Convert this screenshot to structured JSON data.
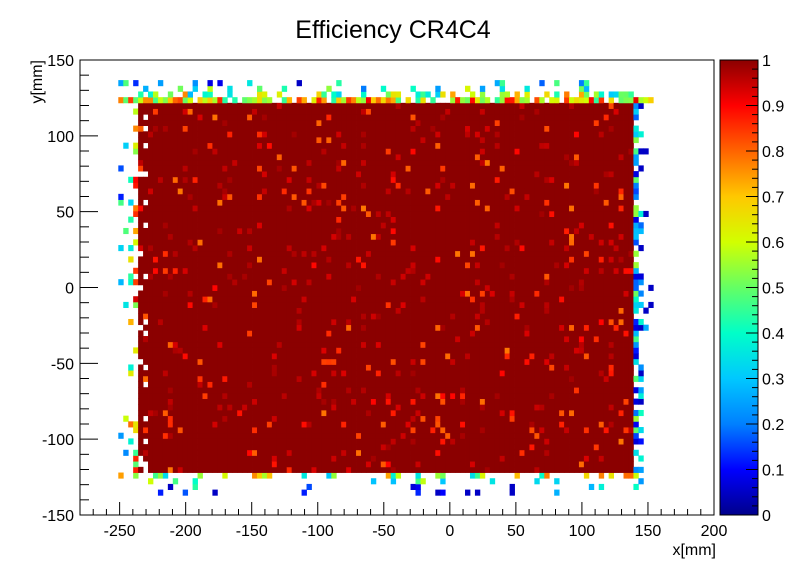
{
  "chart_data": {
    "type": "heatmap",
    "title": "Efficiency CR4C4",
    "xlabel": "x[mm]",
    "ylabel": "y[mm]",
    "xlim": [
      -280,
      200
    ],
    "ylim": [
      -150,
      150
    ],
    "x_ticks": [
      -250,
      -200,
      -150,
      -100,
      -50,
      0,
      50,
      100,
      150,
      200
    ],
    "y_ticks": [
      -150,
      -100,
      -50,
      0,
      50,
      100,
      150
    ],
    "z_range": [
      0,
      1
    ],
    "z_ticks": [
      0,
      0.1,
      0.2,
      0.3,
      0.4,
      0.5,
      0.6,
      0.7,
      0.8,
      0.9,
      1
    ],
    "bin_size_mm": 3.75,
    "core_region": {
      "x": [
        -236,
        138
      ],
      "y": [
        -122,
        120
      ],
      "efficiency": 1.0
    },
    "edge_efficiency": {
      "top": 0.75,
      "bottom": 0.7,
      "left": 0.85,
      "right": 0.35
    },
    "colormap": [
      "#00008b",
      "#0000ff",
      "#0080ff",
      "#00c8ff",
      "#00ffc8",
      "#64ff64",
      "#d2ff00",
      "#ffc800",
      "#ff6400",
      "#ff0000",
      "#8b0000"
    ],
    "colorbar_labels": [
      "0",
      "0.1",
      "0.2",
      "0.3",
      "0.4",
      "0.5",
      "0.6",
      "0.7",
      "0.8",
      "0.9",
      "1"
    ],
    "legend": "right colorbar"
  }
}
